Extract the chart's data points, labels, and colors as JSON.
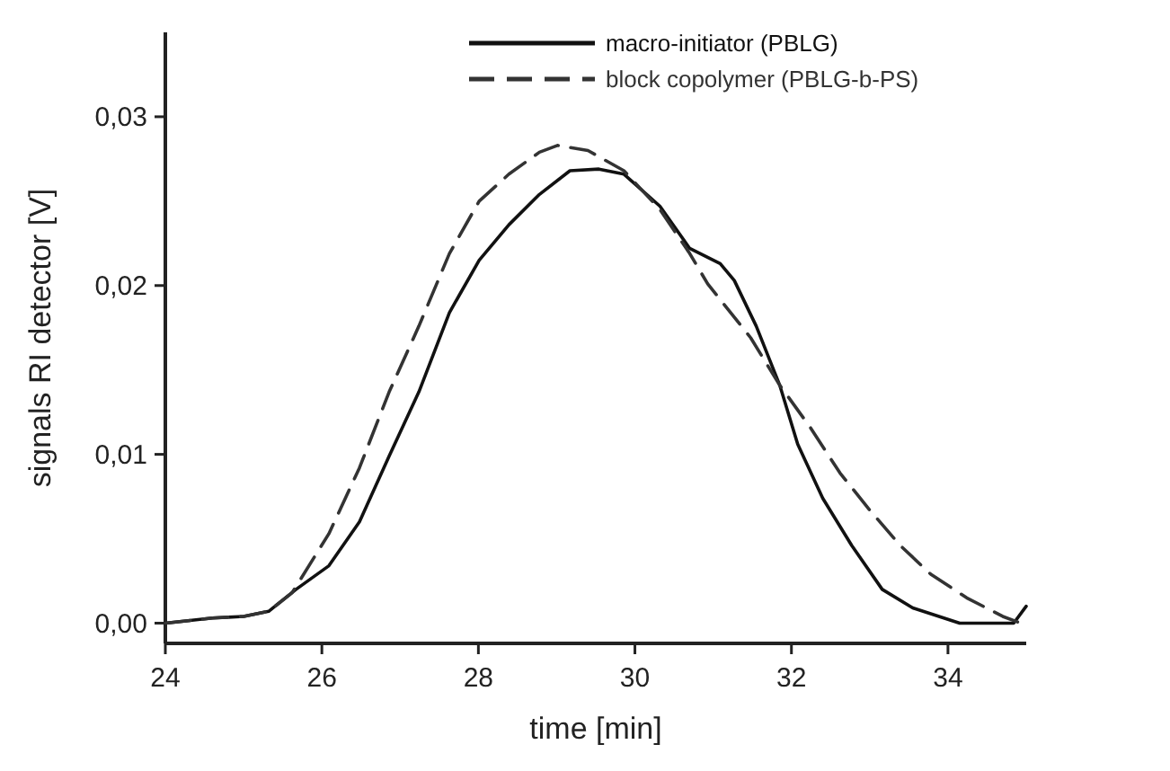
{
  "chart_data": {
    "type": "line",
    "xlabel": "time [min]",
    "ylabel": "signals RI detector [V]",
    "xlim": [
      24,
      35
    ],
    "xticks": [
      24,
      26,
      28,
      30,
      32,
      34
    ],
    "ylim": [
      -0.0012,
      0.035
    ],
    "yticks": [
      {
        "value": 0,
        "label": "0,00"
      },
      {
        "value": 0.01,
        "label": "0,01"
      },
      {
        "value": 0.02,
        "label": "0,02"
      },
      {
        "value": 0.03,
        "label": "0,03"
      }
    ],
    "legend": "top right",
    "grid": false,
    "marker": "none",
    "series": [
      {
        "name": "macro-initiator (PBLG)",
        "color": "#111111",
        "line_style": "solid",
        "x": [
          24.0,
          24.6,
          25.0,
          25.32,
          25.67,
          26.09,
          26.48,
          26.86,
          27.24,
          27.63,
          28.01,
          28.39,
          28.78,
          29.17,
          29.54,
          29.86,
          30.32,
          30.7,
          31.09,
          31.27,
          31.55,
          31.85,
          32.08,
          32.4,
          32.77,
          33.16,
          33.55,
          34.15,
          34.84,
          35.0
        ],
        "values": [
          0.0,
          0.0003,
          0.0004,
          0.0007,
          0.002,
          0.0034,
          0.006,
          0.0099,
          0.0137,
          0.0184,
          0.0215,
          0.0236,
          0.0254,
          0.0268,
          0.0269,
          0.0266,
          0.0247,
          0.0222,
          0.0213,
          0.0203,
          0.0176,
          0.0141,
          0.0106,
          0.0074,
          0.0046,
          0.002,
          0.0009,
          0.0,
          0.0,
          0.001
        ]
      },
      {
        "name": "block copolymer (PBLG-b-PS)",
        "color": "#333333",
        "line_style": "dashed",
        "x": [
          24.0,
          24.6,
          25.0,
          25.32,
          25.62,
          26.09,
          26.48,
          26.86,
          27.24,
          27.63,
          28.01,
          28.39,
          28.78,
          29.01,
          29.4,
          29.86,
          30.32,
          30.7,
          30.93,
          31.48,
          31.85,
          32.24,
          32.62,
          33.0,
          33.39,
          33.78,
          34.24,
          34.7,
          34.93
        ],
        "values": [
          0.0,
          0.0003,
          0.0004,
          0.0007,
          0.0018,
          0.0053,
          0.0092,
          0.0137,
          0.0176,
          0.0219,
          0.025,
          0.0266,
          0.0279,
          0.0283,
          0.028,
          0.0268,
          0.0245,
          0.0219,
          0.0201,
          0.0169,
          0.0141,
          0.0116,
          0.0089,
          0.0067,
          0.0046,
          0.0029,
          0.0015,
          0.0004,
          0.0
        ]
      }
    ]
  }
}
